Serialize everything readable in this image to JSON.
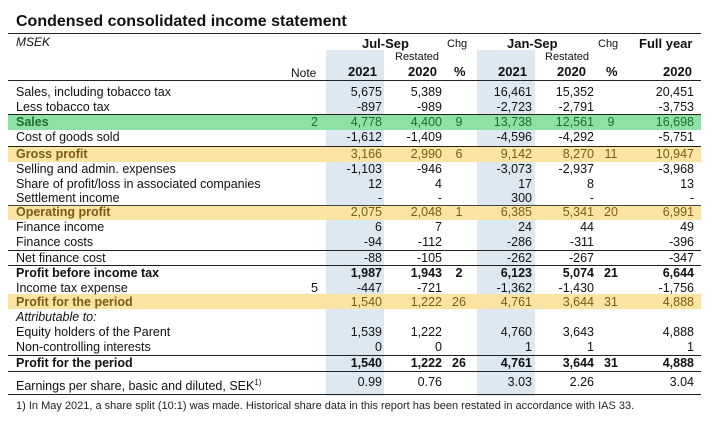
{
  "title": "Condensed consolidated income statement",
  "unit": "MSEK",
  "header": {
    "note": "Note",
    "jul_sep": "Jul-Sep",
    "jan_sep": "Jan-Sep",
    "chg": "Chg",
    "full_year": "Full year",
    "restated": "Restated",
    "y2021": "2021",
    "y2020": "2020",
    "pct": "%"
  },
  "colors": {
    "sales_band": "#8fe0a5",
    "profit_band": "#fbe3a4",
    "column_shade": "#dde8f1"
  },
  "rows": [
    {
      "label": "Sales, including tobacco tax",
      "note": "",
      "q21": "5,675",
      "q20": "5,389",
      "qchg": "",
      "y21": "16,461",
      "y20": "15,352",
      "ychg": "",
      "fy": "20,451"
    },
    {
      "label": "Less tobacco tax",
      "note": "",
      "q21": "-897",
      "q20": "-989",
      "qchg": "",
      "y21": "-2,723",
      "y20": "-2,791",
      "ychg": "",
      "fy": "-3,753"
    },
    {
      "label": "Sales",
      "note": "2",
      "q21": "4,778",
      "q20": "4,400",
      "qchg": "9",
      "y21": "13,738",
      "y20": "12,561",
      "ychg": "9",
      "fy": "16,698"
    },
    {
      "label": "Cost of goods sold",
      "note": "",
      "q21": "-1,612",
      "q20": "-1,409",
      "qchg": "",
      "y21": "-4,596",
      "y20": "-4,292",
      "ychg": "",
      "fy": "-5,751"
    },
    {
      "label": "Gross profit",
      "note": "",
      "q21": "3,166",
      "q20": "2,990",
      "qchg": "6",
      "y21": "9,142",
      "y20": "8,270",
      "ychg": "11",
      "fy": "10,947"
    },
    {
      "label": "Selling and admin. expenses",
      "note": "",
      "q21": "-1,103",
      "q20": "-946",
      "qchg": "",
      "y21": "-3,073",
      "y20": "-2,937",
      "ychg": "",
      "fy": "-3,968"
    },
    {
      "label": "Share of profit/loss in associated companies",
      "note": "",
      "q21": "12",
      "q20": "4",
      "qchg": "",
      "y21": "17",
      "y20": "8",
      "ychg": "",
      "fy": "13"
    },
    {
      "label": "Settlement income",
      "note": "",
      "q21": "-",
      "q20": "-",
      "qchg": "",
      "y21": "300",
      "y20": "-",
      "ychg": "",
      "fy": "-"
    },
    {
      "label": "Operating profit",
      "note": "",
      "q21": "2,075",
      "q20": "2,048",
      "qchg": "1",
      "y21": "6,385",
      "y20": "5,341",
      "ychg": "20",
      "fy": "6,991"
    },
    {
      "label": "Finance income",
      "note": "",
      "q21": "6",
      "q20": "7",
      "qchg": "",
      "y21": "24",
      "y20": "44",
      "ychg": "",
      "fy": "49"
    },
    {
      "label": "Finance costs",
      "note": "",
      "q21": "-94",
      "q20": "-112",
      "qchg": "",
      "y21": "-286",
      "y20": "-311",
      "ychg": "",
      "fy": "-396"
    },
    {
      "label": "Net finance cost",
      "note": "",
      "q21": "-88",
      "q20": "-105",
      "qchg": "",
      "y21": "-262",
      "y20": "-267",
      "ychg": "",
      "fy": "-347"
    },
    {
      "label": "Profit before income tax",
      "note": "",
      "q21": "1,987",
      "q20": "1,943",
      "qchg": "2",
      "y21": "6,123",
      "y20": "5,074",
      "ychg": "21",
      "fy": "6,644"
    },
    {
      "label": "Income tax expense",
      "note": "5",
      "q21": "-447",
      "q20": "-721",
      "qchg": "",
      "y21": "-1,362",
      "y20": "-1,430",
      "ychg": "",
      "fy": "-1,756"
    },
    {
      "label": "Profit for the period",
      "note": "",
      "q21": "1,540",
      "q20": "1,222",
      "qchg": "26",
      "y21": "4,761",
      "y20": "3,644",
      "ychg": "31",
      "fy": "4,888"
    },
    {
      "label": "Attributable to:",
      "note": "",
      "q21": "",
      "q20": "",
      "qchg": "",
      "y21": "",
      "y20": "",
      "ychg": "",
      "fy": ""
    },
    {
      "label": "Equity holders of the Parent",
      "note": "",
      "q21": "1,539",
      "q20": "1,222",
      "qchg": "",
      "y21": "4,760",
      "y20": "3,643",
      "ychg": "",
      "fy": "4,888"
    },
    {
      "label": "Non-controlling interests",
      "note": "",
      "q21": "0",
      "q20": "0",
      "qchg": "",
      "y21": "1",
      "y20": "1",
      "ychg": "",
      "fy": "1"
    },
    {
      "label": "Profit for the period",
      "note": "",
      "q21": "1,540",
      "q20": "1,222",
      "qchg": "26",
      "y21": "4,761",
      "y20": "3,644",
      "ychg": "31",
      "fy": "4,888"
    },
    {
      "label": "Earnings per share, basic and diluted, SEK",
      "label_sup": "1)",
      "note": "",
      "q21": "0.99",
      "q20": "0.76",
      "qchg": "",
      "y21": "3.03",
      "y20": "2.26",
      "ychg": "",
      "fy": "3.04"
    }
  ],
  "footnote": "1) In May 2021, a share split (10:1) was made. Historical share data in this report has been restated in accordance with IAS 33."
}
